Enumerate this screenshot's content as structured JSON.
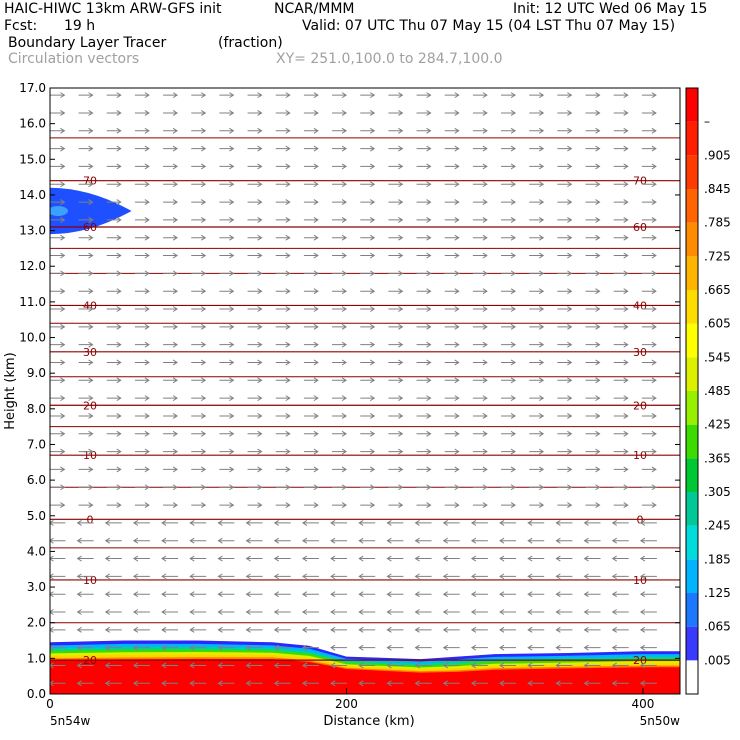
{
  "header": {
    "model": "HAIC-HIWC 13km ARW-GFS init",
    "org": "NCAR/MMM",
    "init": "Init: 12 UTC Wed 06 May 15",
    "fcst_label": "Fcst:",
    "fcst_value": "19 h",
    "valid": "Valid: 07 UTC Thu 07 May 15 (04 LST Thu 07 May 15)",
    "field": "Boundary Layer Tracer",
    "field_units": "(fraction)",
    "vectors": "Circulation vectors",
    "xy": "XY= 251.0,100.0 to 284.7,100.0"
  },
  "colorbar": {
    "labels": [
      ".005",
      ".065",
      ".125",
      ".185",
      ".245",
      ".305",
      ".365",
      ".425",
      ".485",
      ".545",
      ".605",
      ".665",
      ".725",
      ".785",
      ".845",
      ".905",
      "–"
    ],
    "colors": [
      "#ffffff",
      "#3a3aff",
      "#1e78ff",
      "#00b4ff",
      "#00dcdc",
      "#00c896",
      "#00c832",
      "#3cdc00",
      "#96f000",
      "#dcf000",
      "#ffff00",
      "#ffdc00",
      "#ffb400",
      "#ff8c00",
      "#ff6400",
      "#ff3c00",
      "#ff1e00",
      "#ff0000"
    ]
  },
  "chart_data": {
    "type": "heatmap",
    "title": "Boundary Layer Tracer",
    "units": "(fraction)",
    "xlabel": "Distance (km)",
    "ylabel": "Height (km)",
    "xlim": [
      0,
      425
    ],
    "ylim": [
      0,
      17
    ],
    "x_ticks": [
      0,
      200,
      400
    ],
    "y_ticks": [
      "0.0",
      "1.0",
      "2.0",
      "3.0",
      "4.0",
      "5.0",
      "6.0",
      "7.0",
      "8.0",
      "9.0",
      "10.0",
      "11.0",
      "12.0",
      "13.0",
      "14.0",
      "15.0",
      "16.0",
      "17.0"
    ],
    "x_endpoint_labels": [
      "5n54w",
      "5n50w"
    ],
    "temperature_contours": {
      "units": "degC",
      "levels": [
        {
          "label": "70",
          "height_km": 14.4
        },
        {
          "label": "60",
          "height_km": 13.1
        },
        {
          "label": "40",
          "height_km": 10.9
        },
        {
          "label": "30",
          "height_km": 9.6
        },
        {
          "label": "20",
          "height_km": 8.1
        },
        {
          "label": "10",
          "height_km": 6.7
        },
        {
          "label": "0",
          "height_km": 4.9
        },
        {
          "label": "10",
          "height_km": 3.2
        },
        {
          "label": "20",
          "height_km": 0.95
        }
      ]
    },
    "tracer_layer": {
      "x_km": [
        0,
        50,
        100,
        150,
        175,
        200,
        250,
        275,
        300,
        350,
        400,
        425
      ],
      "red_top_km": [
        0.95,
        0.97,
        0.98,
        0.98,
        0.9,
        0.7,
        0.6,
        0.62,
        0.68,
        0.72,
        0.75,
        0.75
      ],
      "blue_top_km": [
        1.45,
        1.5,
        1.5,
        1.45,
        1.35,
        1.05,
        0.98,
        1.05,
        1.12,
        1.15,
        1.2,
        1.2
      ]
    },
    "upper_tracer_blob": {
      "x_range_km": [
        0,
        55
      ],
      "height_range_km": [
        12.9,
        14.2
      ]
    },
    "vector_direction": {
      "above_5km": "east",
      "below_5km": "west"
    }
  }
}
